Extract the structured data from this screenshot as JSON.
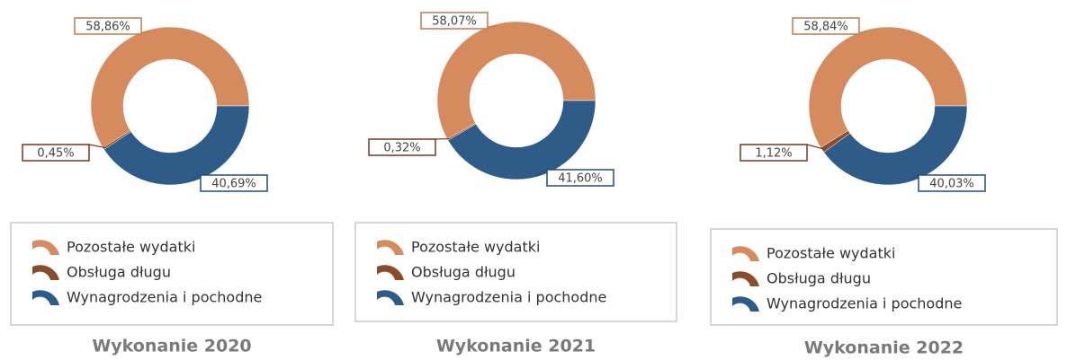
{
  "chart_data": [
    {
      "type": "pie",
      "title": "Wykonanie 2020",
      "categories": [
        "Pozostałe wydatki",
        "Obsługa długu",
        "Wynagrodzenia i pochodne"
      ],
      "values": [
        58.86,
        0.45,
        40.69
      ],
      "value_labels": [
        "58,86%",
        "0,45%",
        "40,69%"
      ],
      "colors": [
        "#d68b5f",
        "#8b4c2c",
        "#2e5b88"
      ]
    },
    {
      "type": "pie",
      "title": "Wykonanie 2021",
      "categories": [
        "Pozostałe wydatki",
        "Obsługa długu",
        "Wynagrodzenia i pochodne"
      ],
      "values": [
        58.07,
        0.32,
        41.6
      ],
      "value_labels": [
        "58,07%",
        "0,32%",
        "41,60%"
      ],
      "colors": [
        "#d68b5f",
        "#8b4c2c",
        "#2e5b88"
      ]
    },
    {
      "type": "pie",
      "title": "Wykonanie 2022",
      "categories": [
        "Pozostałe wydatki",
        "Obsługa długu",
        "Wynagrodzenia i pochodne"
      ],
      "values": [
        58.84,
        1.12,
        40.03
      ],
      "value_labels": [
        "58,84%",
        "1,12%",
        "40,03%"
      ],
      "colors": [
        "#d68b5f",
        "#8b4c2c",
        "#2e5b88"
      ]
    }
  ]
}
